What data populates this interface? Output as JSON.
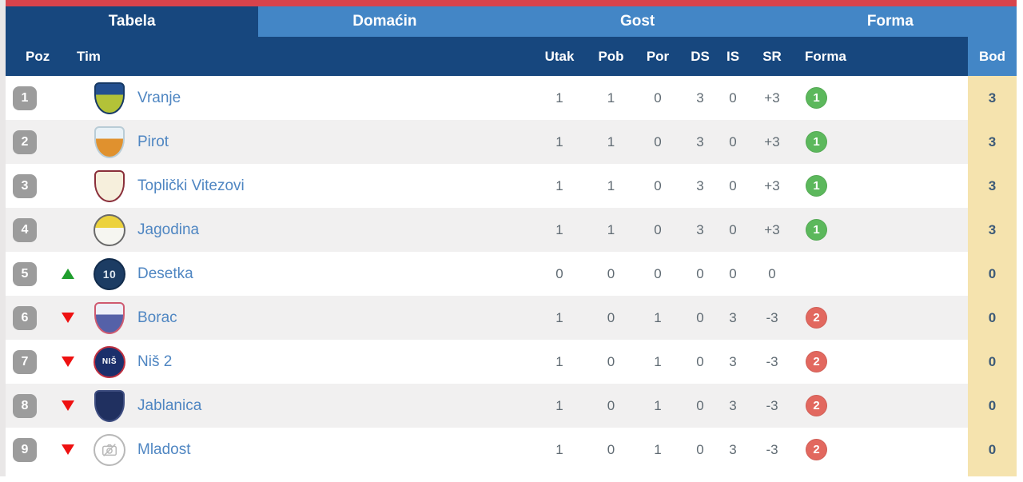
{
  "tabs": [
    {
      "label": "Tabela",
      "active": true
    },
    {
      "label": "Domaćin",
      "active": false
    },
    {
      "label": "Gost",
      "active": false
    },
    {
      "label": "Forma",
      "active": false
    }
  ],
  "columns": {
    "poz": "Poz",
    "tim": "Tim",
    "utak": "Utak",
    "pob": "Pob",
    "por": "Por",
    "ds": "DS",
    "is": "IS",
    "sr": "SR",
    "forma": "Forma",
    "bod": "Bod"
  },
  "colors": {
    "topbar_red": "#d8434c",
    "navy": "#17477e",
    "light_blue": "#4386c6",
    "row_alt": "#f1f0f0",
    "bod_bg": "#f5e3ae",
    "badge_gray": "#9c9c9c",
    "form_win_green": "#5cb85c",
    "form_loss_red": "#e2685f",
    "team_link_blue": "#4f86c2",
    "up_green": "#209e2e",
    "down_red": "#ee1111",
    "bod_text": "#3c5a78",
    "number_gray": "#5f6a72"
  },
  "table": {
    "rows": [
      {
        "pos": "1",
        "movement": "none",
        "team": "Vranje",
        "logo": {
          "shape": "shield",
          "c1": "#24508f",
          "c2": "#b3c238",
          "border": "#173a66",
          "text": "",
          "text_color": "#ffffff"
        },
        "utak": "1",
        "pob": "1",
        "por": "0",
        "ds": "3",
        "is": "0",
        "sr": "+3",
        "forma": {
          "value": "1",
          "type": "win"
        },
        "bod": "3"
      },
      {
        "pos": "2",
        "movement": "none",
        "team": "Pirot",
        "logo": {
          "shape": "shield",
          "c1": "#e9f1f6",
          "c2": "#e0912e",
          "border": "#b9ccd6",
          "text": "",
          "text_color": "#ffffff"
        },
        "utak": "1",
        "pob": "1",
        "por": "0",
        "ds": "3",
        "is": "0",
        "sr": "+3",
        "forma": {
          "value": "1",
          "type": "win"
        },
        "bod": "3"
      },
      {
        "pos": "3",
        "movement": "none",
        "team": "Toplički Vitezovi",
        "logo": {
          "shape": "shield",
          "c1": "#f6efdc",
          "c2": "#f6efdc",
          "border": "#8a2f3a",
          "text": "",
          "text_color": "#ffffff"
        },
        "utak": "1",
        "pob": "1",
        "por": "0",
        "ds": "3",
        "is": "0",
        "sr": "+3",
        "forma": {
          "value": "1",
          "type": "win"
        },
        "bod": "3"
      },
      {
        "pos": "4",
        "movement": "none",
        "team": "Jagodina",
        "logo": {
          "shape": "circle",
          "c1": "#ecd23d",
          "c2": "#f6f6f1",
          "border": "#6a6a6a",
          "text": "",
          "text_color": "#ffffff"
        },
        "utak": "1",
        "pob": "1",
        "por": "0",
        "ds": "3",
        "is": "0",
        "sr": "+3",
        "forma": {
          "value": "1",
          "type": "win"
        },
        "bod": "3"
      },
      {
        "pos": "5",
        "movement": "up",
        "team": "Desetka",
        "logo": {
          "shape": "circle",
          "c1": "#1c3c63",
          "c2": "#1c3c63",
          "border": "#122c4c",
          "text": "10",
          "text_color": "#dfe7ef"
        },
        "utak": "0",
        "pob": "0",
        "por": "0",
        "ds": "0",
        "is": "0",
        "sr": "0",
        "forma": null,
        "bod": "0"
      },
      {
        "pos": "6",
        "movement": "down",
        "team": "Borac",
        "logo": {
          "shape": "shield",
          "c1": "#eef0f8",
          "c2": "#5561a8",
          "border": "#cf5a70",
          "text": "",
          "text_color": "#ffffff"
        },
        "utak": "1",
        "pob": "0",
        "por": "1",
        "ds": "0",
        "is": "3",
        "sr": "-3",
        "forma": {
          "value": "2",
          "type": "loss"
        },
        "bod": "0"
      },
      {
        "pos": "7",
        "movement": "down",
        "team": "Niš 2",
        "logo": {
          "shape": "circle",
          "c1": "#1b2f6b",
          "c2": "#1b2f6b",
          "border": "#c03040",
          "text": "NIŠ",
          "text_color": "#ffffff"
        },
        "utak": "1",
        "pob": "0",
        "por": "1",
        "ds": "0",
        "is": "3",
        "sr": "-3",
        "forma": {
          "value": "2",
          "type": "loss"
        },
        "bod": "0"
      },
      {
        "pos": "8",
        "movement": "down",
        "team": "Jablanica",
        "logo": {
          "shape": "shield",
          "c1": "#203060",
          "c2": "#203060",
          "border": "#3e4d80",
          "text": "",
          "text_color": "#ffffff"
        },
        "utak": "1",
        "pob": "0",
        "por": "1",
        "ds": "0",
        "is": "3",
        "sr": "-3",
        "forma": {
          "value": "2",
          "type": "loss"
        },
        "bod": "0"
      },
      {
        "pos": "9",
        "movement": "down",
        "team": "Mladost",
        "logo": {
          "shape": "placeholder",
          "c1": "#ffffff",
          "c2": "#ffffff",
          "border": "#b8b8b8",
          "text": "",
          "text_color": "#b8b8b8"
        },
        "utak": "1",
        "pob": "0",
        "por": "1",
        "ds": "0",
        "is": "3",
        "sr": "-3",
        "forma": {
          "value": "2",
          "type": "loss"
        },
        "bod": "0"
      }
    ]
  }
}
